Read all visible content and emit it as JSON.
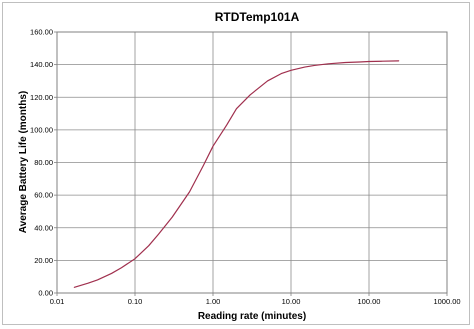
{
  "chart_data": {
    "type": "line",
    "title": "RTDTemp101A",
    "xlabel": "Reading  rate (minutes)",
    "ylabel": "Average  Battery  Life  (months)",
    "x_scale": "log",
    "xlim": [
      0.01,
      1000
    ],
    "ylim": [
      0,
      160
    ],
    "x_ticks": [
      "0.01",
      "0.10",
      "1.00",
      "10.00",
      "100.00",
      "1000.00"
    ],
    "y_ticks": [
      "0.00",
      "20.00",
      "40.00",
      "60.00",
      "80.00",
      "100.00",
      "120.00",
      "140.00",
      "160.00"
    ],
    "grid": true,
    "legend": "none",
    "series": [
      {
        "color": "#a0304e",
        "x": [
          0.0167,
          0.025,
          0.033,
          0.05,
          0.067,
          0.1,
          0.15,
          0.2,
          0.3,
          0.5,
          0.75,
          1,
          1.5,
          2,
          3,
          5,
          7.5,
          10,
          15,
          20,
          30,
          50,
          75,
          100,
          150,
          240
        ],
        "y": [
          3.5,
          6.0,
          8.0,
          12.0,
          15.5,
          21.0,
          29.0,
          36.0,
          46.5,
          62.0,
          78.0,
          90.0,
          103.0,
          113.0,
          121.5,
          130.0,
          134.5,
          136.5,
          138.5,
          139.5,
          140.5,
          141.3,
          141.6,
          141.9,
          142.1,
          142.3
        ]
      }
    ]
  }
}
